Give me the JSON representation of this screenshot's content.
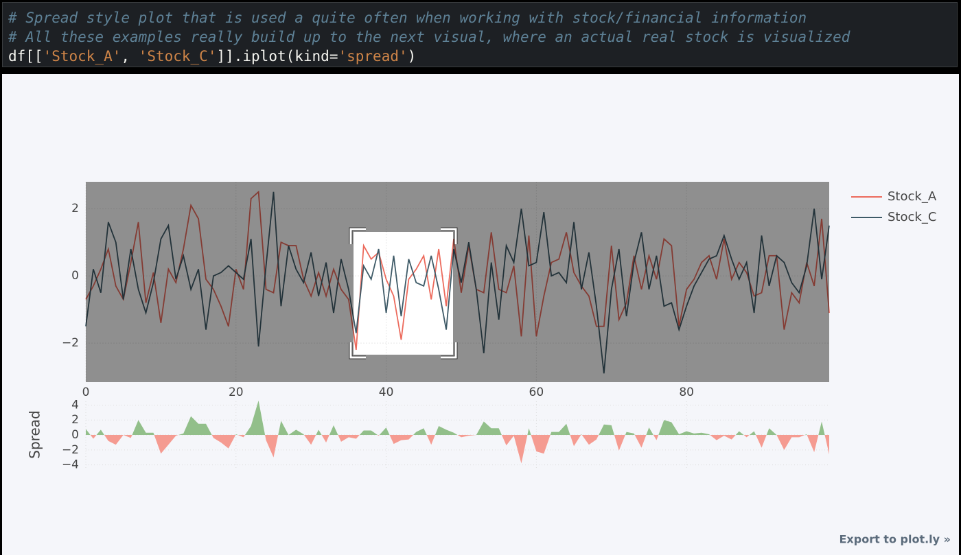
{
  "code": {
    "comment_lines": [
      "# Spread style plot that is used a quite often when working with stock/financial information",
      "# All these examples really build up to the next visual, where an actual real stock is visualized"
    ],
    "statement": [
      "df[[",
      "'Stock_A'",
      ", ",
      "'Stock_C'",
      "]].iplot(kind=",
      "'spread'",
      ")"
    ]
  },
  "export_link": "Export to plot.ly »",
  "chart_data": [
    {
      "type": "line",
      "x": [
        0,
        1,
        2,
        3,
        4,
        5,
        6,
        7,
        8,
        9,
        10,
        11,
        12,
        13,
        14,
        15,
        16,
        17,
        18,
        19,
        20,
        21,
        22,
        23,
        24,
        25,
        26,
        27,
        28,
        29,
        30,
        31,
        32,
        33,
        34,
        35,
        36,
        37,
        38,
        39,
        40,
        41,
        42,
        43,
        44,
        45,
        46,
        47,
        48,
        49,
        50,
        51,
        52,
        53,
        54,
        55,
        56,
        57,
        58,
        59,
        60,
        61,
        62,
        63,
        64,
        65,
        66,
        67,
        68,
        69,
        70,
        71,
        72,
        73,
        74,
        75,
        76,
        77,
        78,
        79,
        80,
        81,
        82,
        83,
        84,
        85,
        86,
        87,
        88,
        89,
        90,
        91,
        92,
        93,
        94,
        95,
        96,
        97,
        98,
        99
      ],
      "series": [
        {
          "name": "Stock_A",
          "color": "#ec6a5c",
          "values": [
            -0.7,
            -0.3,
            0.2,
            0.8,
            -0.3,
            -0.7,
            0.4,
            1.6,
            -0.8,
            0.1,
            -1.4,
            0.2,
            -0.2,
            0.8,
            2.1,
            1.7,
            -0.1,
            -0.4,
            -0.9,
            -1.5,
            0.2,
            -0.4,
            2.3,
            2.5,
            -0.4,
            -0.5,
            1.0,
            0.9,
            0.9,
            -0.1,
            -0.6,
            0.1,
            -0.6,
            0.2,
            -0.4,
            -0.7,
            -2.2,
            0.9,
            0.5,
            0.7,
            -0.1,
            -0.6,
            -1.9,
            -0.1,
            0.2,
            0.6,
            -0.7,
            0.8,
            -0.9,
            1.1,
            -0.5,
            0.9,
            -0.4,
            -0.5,
            1.3,
            -0.4,
            -0.5,
            0.3,
            -1.8,
            1.2,
            -1.8,
            -0.6,
            0.4,
            0.5,
            1.3,
            0.1,
            -0.3,
            -0.6,
            -1.5,
            -1.5,
            0.9,
            -1.3,
            -0.8,
            0.6,
            -0.4,
            0.6,
            -0.1,
            1.1,
            0.9,
            -1.5,
            -0.4,
            -0.1,
            0.4,
            0.6,
            -0.1,
            1.1,
            -0.1,
            0.4,
            0.1,
            -0.6,
            -0.5,
            0.6,
            0.6,
            -1.6,
            -0.5,
            -0.8,
            0.4,
            -0.3,
            1.7,
            -1.1
          ]
        },
        {
          "name": "Stock_C",
          "color": "#3e5a67",
          "values": [
            -1.5,
            0.2,
            -0.5,
            1.6,
            1.0,
            -0.7,
            0.8,
            -0.4,
            -1.1,
            -0.2,
            1.1,
            1.5,
            -0.1,
            0.6,
            -0.4,
            0.2,
            -1.6,
            0.0,
            0.1,
            0.3,
            0.1,
            -0.1,
            1.1,
            -2.1,
            0.3,
            2.5,
            -0.9,
            0.9,
            0.2,
            -0.2,
            0.7,
            -0.6,
            0.4,
            -1.1,
            0.5,
            -0.4,
            -1.7,
            0.3,
            -0.1,
            0.8,
            -1.1,
            0.6,
            -1.2,
            0.5,
            -0.2,
            -0.3,
            0.6,
            -0.4,
            -1.6,
            0.8,
            -0.2,
            1.0,
            -0.4,
            -2.3,
            0.4,
            -1.3,
            0.9,
            0.4,
            2.0,
            0.3,
            0.4,
            1.9,
            0.0,
            0.1,
            -0.2,
            1.6,
            -0.4,
            0.7,
            -0.9,
            -2.9,
            -0.4,
            0.8,
            -1.2,
            0.4,
            1.3,
            -0.4,
            0.6,
            -0.9,
            -0.8,
            -1.6,
            -0.9,
            -0.3,
            0.1,
            0.5,
            0.6,
            1.2,
            0.5,
            -0.1,
            0.4,
            -1.1,
            1.2,
            -0.3,
            0.6,
            0.4,
            -0.2,
            -0.5,
            0.3,
            2.0,
            -0.1,
            1.5
          ]
        }
      ],
      "xlim": [
        0,
        99
      ],
      "xticks": [
        0,
        20,
        40,
        60,
        80
      ],
      "ylim": [
        -3.16,
        2.8
      ],
      "yticks": [
        {
          "value": -2,
          "label": "−2"
        },
        0,
        2
      ],
      "grid": true,
      "legend": "right"
    },
    {
      "type": "spread",
      "ylabel": "Spread",
      "values": [
        0.8,
        -0.5,
        0.7,
        -0.8,
        -1.3,
        0,
        -0.4,
        2.0,
        0.3,
        0.3,
        -2.5,
        -1.3,
        -0.1,
        0.2,
        2.5,
        1.5,
        1.5,
        -0.4,
        -1.0,
        -1.8,
        0.1,
        -0.3,
        1.2,
        4.6,
        -0.7,
        -3.0,
        1.9,
        0,
        0.7,
        0.1,
        -1.3,
        0.7,
        -1.0,
        1.3,
        -0.9,
        -0.3,
        -0.5,
        0.6,
        0.6,
        -0.1,
        1.0,
        -1.2,
        -0.7,
        -0.6,
        0.4,
        0.9,
        -1.3,
        1.2,
        0.7,
        0.3,
        -0.3,
        -0.1,
        0,
        1.8,
        0.9,
        0.9,
        -1.4,
        -0.1,
        -3.8,
        0.9,
        -2.2,
        -2.5,
        0.4,
        0.4,
        1.5,
        -1.5,
        0.1,
        -1.3,
        -0.6,
        1.4,
        1.3,
        -2.1,
        0.4,
        0.2,
        -1.7,
        1.0,
        -0.7,
        2.0,
        1.7,
        0.1,
        0.5,
        0.2,
        0.3,
        0.1,
        -0.7,
        -0.1,
        -0.6,
        0.5,
        -0.3,
        0.5,
        -1.7,
        0.9,
        0,
        -2.0,
        -0.3,
        -0.3,
        0.1,
        -2.3,
        1.8,
        -2.6
      ],
      "positive_color": "#92bf8a",
      "negative_color": "#f59b91",
      "ylim": [
        -4.4,
        4.5
      ],
      "yticks": [
        {
          "value": -4,
          "label": "−4"
        },
        {
          "value": -2,
          "label": "−2"
        },
        0,
        2,
        4
      ],
      "grid": true
    }
  ]
}
